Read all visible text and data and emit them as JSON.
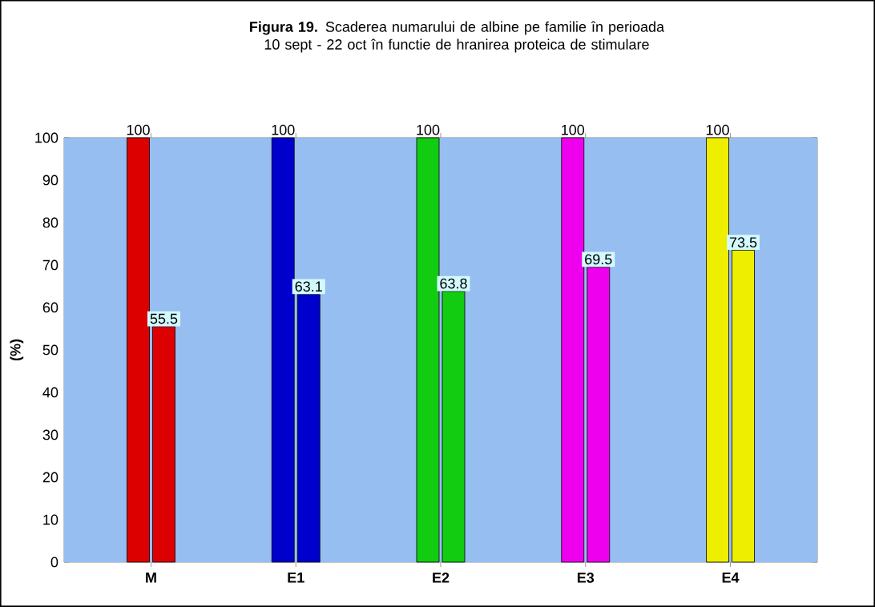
{
  "chart_data": {
    "type": "bar",
    "title": "**Figura 19.** Scaderea numarului de albine pe familie în perioada 10 sept - 22 oct în functie de hranirea proteica de stimulare",
    "categories": [
      "M",
      "E1",
      "E2",
      "E3",
      "E4"
    ],
    "series": [
      {
        "colors": [
          "#dd0000",
          "#0000cc",
          "#11cc11",
          "#ee00ee",
          "#eeee00"
        ],
        "values": [
          100,
          100,
          100,
          100,
          100
        ]
      },
      {
        "colors": [
          "#dd0000",
          "#0000cc",
          "#11cc11",
          "#ee00ee",
          "#eeee00"
        ],
        "values": [
          55.5,
          63.1,
          63.8,
          69.5,
          73.5
        ]
      }
    ],
    "ylabel": "(%)",
    "ylim": [
      0,
      100
    ],
    "yticks": [
      0,
      10,
      20,
      30,
      40,
      50,
      60,
      70,
      80,
      90,
      100
    ],
    "data_labels": true
  }
}
